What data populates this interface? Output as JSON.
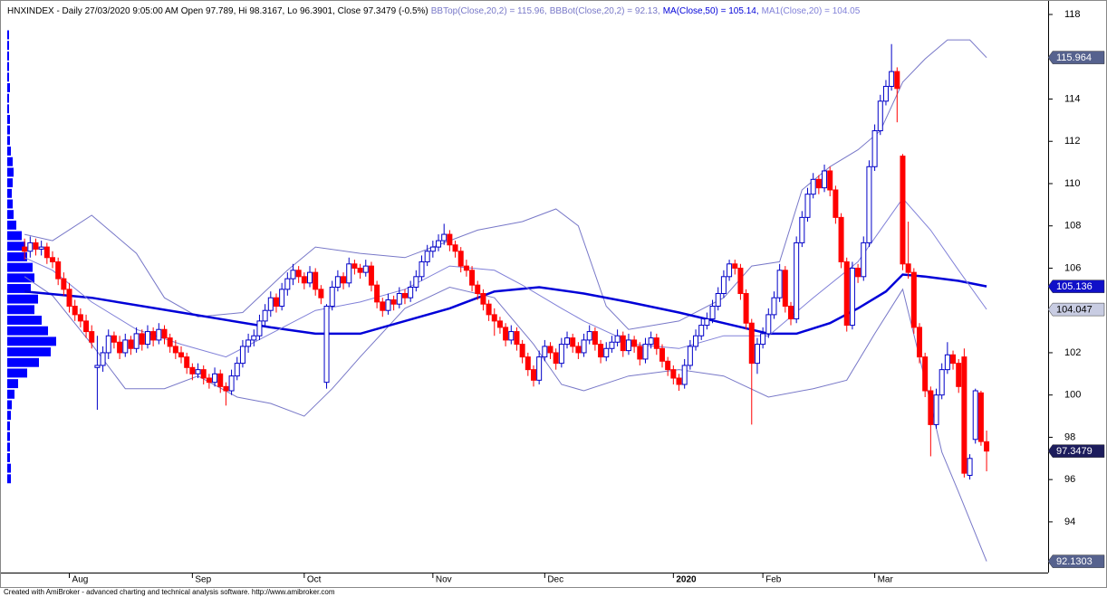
{
  "chart_data": {
    "type": "candlestick",
    "title": "HNXINDEX - Daily 27/03/2020 9:05:00 AM Open 97.789, Hi 98.3167, Lo 96.3901, Close 97.3479 (-0.5%)",
    "footer": "Created with AmiBroker - advanced charting and technical analysis software. http://www.amibroker.com",
    "up_color": "#0000c8",
    "down_color": "#ff0000",
    "close_box_color": "#1c1c5c",
    "ylim": [
      91.6,
      118.3
    ],
    "yticks": [
      94,
      96,
      98,
      100,
      102,
      104,
      106,
      108,
      110,
      112,
      114,
      116,
      118
    ],
    "xlim": [
      -3.1,
      183
    ],
    "xticks": [
      {
        "value": 8,
        "label": "Aug"
      },
      {
        "value": 30,
        "label": "Sep"
      },
      {
        "value": 50,
        "label": "Oct"
      },
      {
        "value": 73,
        "label": "Nov"
      },
      {
        "value": 93,
        "label": "Dec"
      },
      {
        "value": 116,
        "label": "2020"
      },
      {
        "value": 132,
        "label": "Feb"
      },
      {
        "value": 152,
        "label": "Mar"
      }
    ],
    "candles": [
      [
        107.0,
        107.4,
        106.4,
        106.8
      ],
      [
        106.8,
        107.5,
        106.5,
        107.2
      ],
      [
        107.2,
        107.4,
        106.6,
        106.9
      ],
      [
        106.9,
        107.3,
        106.6,
        107.0
      ],
      [
        107.0,
        107.2,
        106.2,
        106.5
      ],
      [
        106.5,
        106.8,
        106.0,
        106.3
      ],
      [
        106.3,
        106.5,
        105.2,
        105.5
      ],
      [
        105.5,
        105.8,
        104.7,
        105.0
      ],
      [
        105.0,
        105.3,
        103.9,
        104.2
      ],
      [
        104.2,
        104.5,
        103.5,
        103.8
      ],
      [
        103.8,
        104.1,
        103.2,
        103.5
      ],
      [
        103.5,
        103.8,
        102.7,
        103.0
      ],
      [
        103.0,
        103.3,
        102.2,
        102.5
      ],
      [
        101.3,
        102.8,
        99.3,
        101.4
      ],
      [
        101.4,
        102.3,
        101.1,
        102.0
      ],
      [
        102.0,
        103.1,
        101.7,
        102.8
      ],
      [
        102.8,
        103.0,
        102.2,
        102.5
      ],
      [
        102.5,
        102.8,
        101.7,
        102.0
      ],
      [
        102.0,
        102.9,
        101.8,
        102.6
      ],
      [
        102.6,
        102.8,
        101.9,
        102.2
      ],
      [
        102.2,
        103.2,
        102.0,
        102.9
      ],
      [
        102.9,
        103.1,
        102.1,
        102.4
      ],
      [
        102.4,
        103.3,
        102.2,
        103.0
      ],
      [
        103.0,
        103.2,
        102.3,
        102.6
      ],
      [
        102.6,
        103.4,
        102.4,
        103.1
      ],
      [
        103.1,
        103.3,
        102.4,
        102.7
      ],
      [
        102.7,
        102.9,
        102.0,
        102.3
      ],
      [
        102.3,
        102.6,
        101.7,
        102.0
      ],
      [
        102.0,
        102.3,
        101.5,
        101.8
      ],
      [
        101.8,
        102.0,
        101.0,
        101.3
      ],
      [
        101.3,
        101.5,
        100.7,
        101.0
      ],
      [
        101.0,
        101.5,
        100.8,
        101.2
      ],
      [
        101.2,
        101.4,
        100.5,
        100.8
      ],
      [
        100.8,
        101.0,
        100.3,
        100.6
      ],
      [
        100.6,
        101.3,
        100.4,
        101.0
      ],
      [
        101.0,
        101.2,
        100.1,
        100.4
      ],
      [
        100.4,
        100.6,
        99.5,
        100.2
      ],
      [
        100.2,
        101.2,
        100.0,
        100.9
      ],
      [
        100.9,
        101.8,
        100.7,
        101.5
      ],
      [
        101.5,
        102.6,
        101.3,
        102.3
      ],
      [
        102.3,
        102.9,
        102.0,
        102.6
      ],
      [
        102.6,
        103.1,
        102.3,
        102.8
      ],
      [
        102.8,
        103.8,
        102.6,
        103.5
      ],
      [
        103.5,
        104.3,
        103.2,
        104.0
      ],
      [
        104.0,
        104.9,
        103.7,
        104.6
      ],
      [
        104.6,
        104.8,
        103.9,
        104.2
      ],
      [
        104.2,
        105.3,
        104.0,
        105.0
      ],
      [
        105.0,
        105.8,
        104.7,
        105.5
      ],
      [
        105.5,
        106.2,
        105.2,
        105.9
      ],
      [
        105.9,
        106.1,
        105.3,
        105.6
      ],
      [
        105.6,
        105.8,
        105.0,
        105.3
      ],
      [
        105.3,
        106.1,
        105.1,
        105.8
      ],
      [
        105.8,
        106.0,
        104.7,
        105.0
      ],
      [
        105.0,
        105.2,
        104.3,
        104.6
      ],
      [
        100.6,
        104.3,
        100.3,
        104.2
      ],
      [
        104.2,
        105.4,
        104.0,
        105.1
      ],
      [
        105.1,
        105.9,
        104.9,
        105.6
      ],
      [
        105.6,
        105.8,
        105.0,
        105.3
      ],
      [
        105.3,
        106.5,
        105.1,
        106.2
      ],
      [
        106.2,
        106.4,
        105.7,
        106.0
      ],
      [
        106.0,
        106.2,
        105.5,
        105.8
      ],
      [
        105.8,
        106.4,
        105.6,
        106.1
      ],
      [
        106.1,
        106.3,
        104.9,
        105.2
      ],
      [
        105.2,
        105.4,
        104.1,
        104.4
      ],
      [
        104.4,
        104.6,
        103.7,
        104.0
      ],
      [
        104.0,
        104.8,
        103.8,
        104.5
      ],
      [
        104.5,
        104.7,
        104.0,
        104.3
      ],
      [
        104.3,
        105.1,
        104.1,
        104.8
      ],
      [
        104.8,
        105.0,
        104.3,
        104.6
      ],
      [
        104.6,
        105.4,
        104.4,
        105.1
      ],
      [
        105.1,
        105.9,
        104.9,
        105.6
      ],
      [
        105.6,
        106.6,
        105.4,
        106.3
      ],
      [
        106.3,
        107.1,
        106.1,
        106.8
      ],
      [
        106.8,
        107.3,
        106.5,
        107.0
      ],
      [
        107.0,
        107.6,
        106.8,
        107.3
      ],
      [
        107.3,
        108.1,
        107.1,
        107.6
      ],
      [
        107.6,
        107.8,
        106.8,
        107.1
      ],
      [
        107.1,
        107.3,
        106.5,
        106.8
      ],
      [
        106.8,
        107.0,
        105.8,
        106.1
      ],
      [
        106.1,
        106.4,
        105.6,
        105.9
      ],
      [
        105.9,
        106.1,
        104.9,
        105.2
      ],
      [
        105.2,
        105.4,
        104.5,
        104.8
      ],
      [
        104.8,
        105.0,
        104.0,
        104.3
      ],
      [
        104.3,
        104.5,
        103.5,
        103.8
      ],
      [
        103.8,
        104.1,
        102.8,
        103.5
      ],
      [
        103.5,
        103.7,
        102.9,
        103.2
      ],
      [
        103.2,
        103.4,
        102.3,
        102.6
      ],
      [
        102.6,
        103.3,
        102.4,
        103.0
      ],
      [
        103.0,
        103.2,
        102.1,
        102.4
      ],
      [
        102.4,
        102.6,
        101.5,
        101.8
      ],
      [
        101.8,
        102.0,
        100.9,
        101.2
      ],
      [
        101.2,
        101.4,
        100.4,
        100.7
      ],
      [
        100.7,
        102.1,
        100.5,
        101.8
      ],
      [
        101.8,
        102.6,
        101.6,
        102.3
      ],
      [
        102.3,
        102.5,
        101.7,
        102.0
      ],
      [
        102.0,
        102.2,
        101.2,
        101.5
      ],
      [
        101.5,
        102.7,
        101.3,
        102.4
      ],
      [
        102.4,
        103.0,
        102.2,
        102.7
      ],
      [
        102.7,
        102.9,
        102.0,
        102.3
      ],
      [
        102.3,
        102.5,
        101.7,
        102.0
      ],
      [
        102.0,
        102.9,
        101.8,
        102.6
      ],
      [
        102.6,
        103.3,
        102.4,
        103.0
      ],
      [
        103.0,
        103.2,
        102.1,
        102.4
      ],
      [
        102.4,
        102.6,
        101.5,
        101.8
      ],
      [
        101.8,
        102.5,
        101.6,
        102.2
      ],
      [
        102.2,
        102.8,
        102.0,
        102.5
      ],
      [
        102.5,
        103.1,
        102.3,
        102.8
      ],
      [
        102.8,
        103.0,
        101.8,
        102.1
      ],
      [
        102.1,
        102.9,
        101.9,
        102.6
      ],
      [
        102.6,
        102.8,
        102.0,
        102.3
      ],
      [
        102.3,
        102.5,
        101.4,
        101.7
      ],
      [
        101.7,
        102.7,
        101.5,
        102.4
      ],
      [
        102.4,
        103.0,
        102.2,
        102.7
      ],
      [
        102.7,
        102.9,
        101.9,
        102.2
      ],
      [
        102.2,
        102.4,
        101.3,
        101.6
      ],
      [
        101.6,
        101.8,
        100.9,
        101.2
      ],
      [
        101.2,
        101.4,
        100.5,
        100.8
      ],
      [
        100.8,
        101.0,
        100.2,
        100.5
      ],
      [
        100.5,
        101.7,
        100.3,
        101.4
      ],
      [
        101.4,
        102.6,
        101.2,
        102.3
      ],
      [
        102.3,
        103.1,
        102.1,
        102.8
      ],
      [
        102.8,
        103.6,
        102.6,
        103.3
      ],
      [
        103.3,
        103.9,
        103.1,
        103.6
      ],
      [
        103.6,
        104.5,
        103.4,
        104.2
      ],
      [
        104.2,
        105.1,
        104.0,
        104.8
      ],
      [
        104.8,
        105.9,
        104.6,
        105.6
      ],
      [
        105.6,
        106.4,
        105.4,
        106.2
      ],
      [
        106.2,
        106.4,
        105.7,
        106.0
      ],
      [
        106.0,
        106.2,
        104.5,
        104.8
      ],
      [
        104.8,
        105.0,
        103.1,
        103.4
      ],
      [
        103.4,
        103.6,
        98.6,
        101.5
      ],
      [
        101.5,
        102.7,
        101.0,
        102.4
      ],
      [
        102.4,
        103.2,
        102.2,
        102.9
      ],
      [
        102.9,
        104.1,
        102.7,
        103.8
      ],
      [
        103.8,
        104.9,
        103.6,
        104.6
      ],
      [
        104.6,
        106.2,
        104.4,
        105.9
      ],
      [
        105.9,
        106.1,
        103.9,
        104.2
      ],
      [
        104.2,
        104.4,
        103.3,
        103.6
      ],
      [
        103.6,
        107.5,
        103.4,
        107.2
      ],
      [
        107.2,
        108.7,
        107.0,
        108.4
      ],
      [
        108.4,
        109.8,
        108.2,
        109.5
      ],
      [
        109.5,
        110.5,
        109.3,
        110.2
      ],
      [
        110.2,
        110.4,
        109.5,
        109.8
      ],
      [
        109.8,
        110.9,
        109.6,
        110.6
      ],
      [
        110.6,
        110.8,
        109.4,
        109.7
      ],
      [
        109.7,
        109.9,
        108.1,
        108.4
      ],
      [
        108.4,
        108.6,
        106.0,
        106.3
      ],
      [
        106.3,
        106.5,
        103.0,
        103.3
      ],
      [
        103.3,
        106.3,
        103.1,
        106.0
      ],
      [
        106.0,
        106.2,
        105.3,
        105.6
      ],
      [
        105.6,
        107.5,
        105.4,
        107.2
      ],
      [
        107.2,
        111.1,
        107.0,
        110.8
      ],
      [
        110.8,
        112.8,
        110.6,
        112.5
      ],
      [
        112.5,
        114.2,
        112.3,
        113.9
      ],
      [
        113.9,
        114.9,
        113.7,
        114.6
      ],
      [
        114.6,
        116.6,
        114.4,
        115.3
      ],
      [
        115.3,
        115.5,
        112.9,
        114.5
      ],
      [
        111.3,
        111.4,
        105.9,
        106.2
      ],
      [
        106.2,
        108.2,
        105.5,
        105.8
      ],
      [
        105.8,
        106.0,
        102.9,
        103.2
      ],
      [
        103.2,
        103.4,
        101.5,
        101.8
      ],
      [
        101.8,
        102.0,
        99.9,
        100.2
      ],
      [
        100.2,
        100.4,
        97.1,
        98.6
      ],
      [
        98.6,
        100.3,
        98.4,
        100.0
      ],
      [
        100.0,
        101.5,
        99.8,
        101.2
      ],
      [
        101.2,
        102.5,
        101.0,
        101.9
      ],
      [
        101.9,
        102.1,
        101.2,
        101.5
      ],
      [
        101.5,
        101.7,
        100.1,
        100.4
      ],
      [
        101.8,
        102.2,
        96.1,
        96.3
      ],
      [
        96.2,
        97.2,
        96.0,
        97.0
      ],
      [
        97.9,
        100.3,
        97.7,
        100.2
      ],
      [
        100.1,
        100.2,
        97.6,
        97.8
      ],
      [
        97.789,
        98.3167,
        96.3901,
        97.3479
      ]
    ],
    "series": [
      {
        "name": "BBTop(Close,20,2) = 115.96,",
        "color": "#7878c8",
        "width": 1,
        "box_color": "#56628e",
        "box_text": "#ffffff",
        "last_value": 115.964,
        "x": [
          0,
          5,
          12,
          20,
          25,
          31,
          39,
          47,
          52,
          60,
          68,
          76,
          81,
          89,
          95,
          99,
          104,
          108,
          117,
          125,
          130,
          135,
          139,
          144,
          149,
          153,
          157,
          161,
          165,
          169,
          172
        ],
        "values": [
          107.6,
          107.3,
          108.5,
          106.7,
          104.6,
          103.7,
          103.9,
          105.9,
          107.0,
          106.7,
          106.5,
          107.3,
          107.8,
          108.2,
          108.8,
          108.0,
          104.2,
          103.1,
          103.5,
          104.6,
          106.1,
          106.3,
          109.7,
          110.8,
          111.6,
          112.5,
          114.8,
          115.9,
          116.8,
          116.8,
          115.96
        ]
      },
      {
        "name": "BBBot(Close,20,2) = 92.13,",
        "color": "#7878c8",
        "width": 1,
        "box_color": "#56628e",
        "box_text": "#ffffff",
        "last_value": 92.1303,
        "x": [
          0,
          5,
          12,
          18,
          25,
          31,
          38,
          44,
          50,
          55,
          60,
          68,
          76,
          84,
          91,
          96,
          100,
          108,
          117,
          125,
          133,
          141,
          147,
          152,
          157,
          161,
          164,
          167,
          172
        ],
        "values": [
          105.6,
          104.7,
          102.4,
          100.3,
          100.3,
          100.9,
          99.9,
          99.6,
          99.0,
          100.3,
          101.8,
          104.1,
          105.1,
          104.6,
          102.4,
          100.5,
          100.2,
          100.9,
          101.2,
          100.9,
          99.9,
          100.3,
          100.7,
          102.9,
          105.0,
          100.7,
          97.3,
          95.4,
          92.13
        ]
      },
      {
        "name": "MA(Close,50) = 105.14,",
        "color": "#0000d8",
        "width": 2.5,
        "box_color": "#1010c8",
        "box_text": "#ffffff",
        "last_value": 105.136,
        "x": [
          0,
          12,
          28,
          44,
          52,
          60,
          68,
          76,
          84,
          92,
          100,
          108,
          117,
          125,
          133,
          138,
          144,
          149,
          154,
          157,
          161,
          167,
          172
        ],
        "values": [
          104.9,
          104.6,
          103.9,
          103.2,
          102.9,
          102.9,
          103.5,
          104.1,
          104.9,
          105.1,
          104.8,
          104.4,
          103.9,
          103.4,
          102.9,
          102.9,
          103.4,
          104.1,
          104.9,
          105.7,
          105.6,
          105.4,
          105.14
        ]
      },
      {
        "name": "MA1(Close,20) = 104.05",
        "color": "#8080d8",
        "width": 1,
        "box_color": "#c8cce2",
        "box_text": "#000000",
        "last_value": 104.047,
        "x": [
          0,
          5,
          12,
          20,
          28,
          36,
          44,
          52,
          60,
          68,
          76,
          84,
          89,
          96,
          100,
          109,
          117,
          125,
          133,
          141,
          149,
          157,
          162,
          167,
          172
        ],
        "values": [
          106.5,
          105.9,
          104.4,
          103.1,
          102.4,
          101.8,
          102.9,
          104.0,
          104.4,
          105.0,
          106.1,
          105.9,
          105.2,
          104.1,
          103.5,
          102.4,
          102.2,
          102.8,
          102.8,
          104.6,
          106.3,
          109.3,
          107.8,
          105.9,
          104.05
        ]
      }
    ],
    "volume_profile": {
      "color": "#0000ff",
      "xlim": [
        0,
        100
      ],
      "levels": [
        96,
        96.5,
        97,
        97.5,
        98,
        98.5,
        99,
        99.5,
        100,
        100.5,
        101,
        101.5,
        102,
        102.5,
        103,
        103.5,
        104,
        104.5,
        105,
        105.5,
        106,
        106.5,
        107,
        107.5,
        108,
        108.5,
        109,
        109.5,
        110,
        110.5,
        111,
        111.5,
        112,
        112.5,
        113,
        113.5,
        114,
        114.5,
        115,
        115.5,
        116,
        116.5,
        117
      ],
      "values": [
        4,
        4,
        3,
        3,
        3,
        3,
        4,
        5,
        8,
        12,
        22,
        35,
        48,
        54,
        45,
        38,
        30,
        34,
        26,
        30,
        28,
        22,
        20,
        16,
        10,
        7,
        6,
        5,
        6,
        7,
        6,
        4,
        3,
        3,
        3,
        2,
        2,
        3,
        2,
        2,
        2,
        2,
        2
      ]
    }
  }
}
